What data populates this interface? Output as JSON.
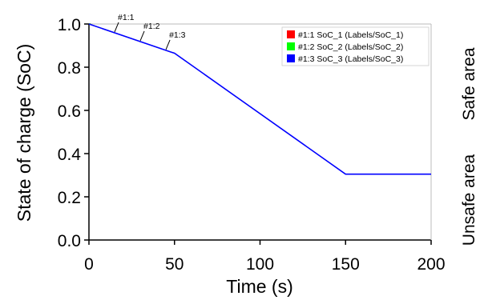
{
  "chart_data": {
    "type": "line",
    "title": "",
    "xlabel": "Time (s)",
    "ylabel": "State of charge (SoC)",
    "xlim": [
      0,
      200
    ],
    "ylim": [
      0.0,
      1.0
    ],
    "xticks": [
      "0",
      "50",
      "100",
      "150",
      "200"
    ],
    "yticks": [
      "0.0",
      "0.2",
      "0.4",
      "0.6",
      "0.8",
      "1.0"
    ],
    "grid": false,
    "legend_position": "top-right",
    "series": [
      {
        "name": "#1:1 SoC_1 (Labels/SoC_1)",
        "color": "#ff0000",
        "x": [
          0,
          1
        ],
        "y": [
          1.0,
          1.0
        ]
      },
      {
        "name": "#1:2 SoC_2 (Labels/SoC_2)",
        "color": "#00ff00",
        "x": [
          0,
          1
        ],
        "y": [
          1.0,
          1.0
        ]
      },
      {
        "name": "#1:3 SoC_3 (Labels/SoC_3)",
        "color": "#0000ff",
        "x": [
          0,
          48,
          50,
          150,
          200
        ],
        "y": [
          1.0,
          0.87,
          0.865,
          0.305,
          0.305
        ]
      }
    ],
    "annotations": [
      {
        "text": "#1:1",
        "x": 15,
        "y": 0.97
      },
      {
        "text": "#1:2",
        "x": 30,
        "y": 0.925
      },
      {
        "text": "#1:3",
        "x": 45,
        "y": 0.875
      }
    ],
    "side_labels": {
      "upper": "Safe area",
      "lower": "Unsafe area"
    }
  }
}
